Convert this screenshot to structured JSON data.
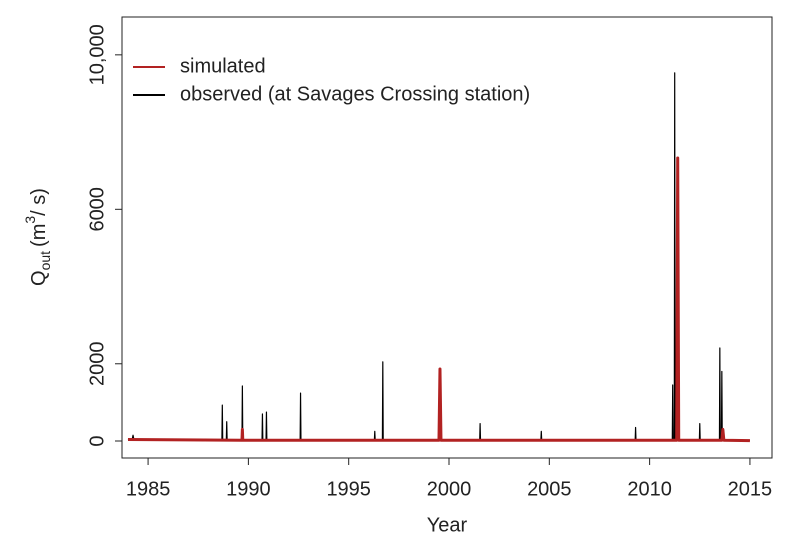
{
  "chart_data": {
    "type": "line",
    "xlabel": "Year",
    "ylabel": {
      "main": "Q",
      "sub": "out",
      "unit_open": "(m",
      "sup": "3",
      "unit_close": "/ s)"
    },
    "xlim": [
      1983.7,
      2016.1
    ],
    "ylim": [
      -440,
      10980
    ],
    "xticks": [
      1985,
      1990,
      1995,
      2000,
      2005,
      2010,
      2015
    ],
    "yticks": [
      0,
      2000,
      6000,
      {
        "value": 10000,
        "label": "10,000"
      }
    ],
    "legend": "top-left",
    "series": [
      {
        "name": "simulated",
        "color": "#b22222",
        "x": [
          1984.0,
          1989.68,
          1989.7,
          1989.72,
          1999.5,
          1999.55,
          1999.6,
          2011.35,
          2011.4,
          2011.45,
          2013.6,
          2013.65,
          2013.7,
          2015.0
        ],
        "values": [
          40,
          20,
          300,
          20,
          20,
          1865,
          20,
          20,
          7330,
          20,
          20,
          300,
          20,
          10
        ]
      },
      {
        "name": "observed (at Savages Crossing station)",
        "color": "#000000",
        "x": [
          1984.0,
          1984.2,
          1984.25,
          1984.3,
          1988.68,
          1988.7,
          1988.72,
          1988.9,
          1988.92,
          1988.94,
          1989.68,
          1989.7,
          1989.72,
          1990.68,
          1990.7,
          1990.72,
          1990.88,
          1990.9,
          1990.92,
          1992.58,
          1992.6,
          1992.62,
          1996.28,
          1996.3,
          1996.32,
          1996.68,
          1996.7,
          1996.72,
          1999.53,
          1999.55,
          1999.57,
          2001.53,
          2001.55,
          2001.57,
          2004.58,
          2004.6,
          2004.62,
          2009.28,
          2009.3,
          2009.32,
          2011.13,
          2011.15,
          2011.17,
          2011.23,
          2011.25,
          2011.27,
          2012.48,
          2012.5,
          2012.52,
          2013.48,
          2013.5,
          2013.52,
          2013.58,
          2013.6,
          2013.62,
          2015.0
        ],
        "values": [
          60,
          20,
          150,
          20,
          20,
          930,
          20,
          20,
          500,
          20,
          20,
          1425,
          20,
          20,
          700,
          20,
          20,
          750,
          20,
          20,
          1240,
          20,
          20,
          250,
          20,
          20,
          2050,
          20,
          20,
          900,
          20,
          20,
          450,
          20,
          20,
          250,
          20,
          20,
          350,
          20,
          20,
          1450,
          20,
          20,
          9534,
          20,
          20,
          450,
          20,
          20,
          2410,
          20,
          20,
          1800,
          20,
          20
        ]
      }
    ]
  }
}
